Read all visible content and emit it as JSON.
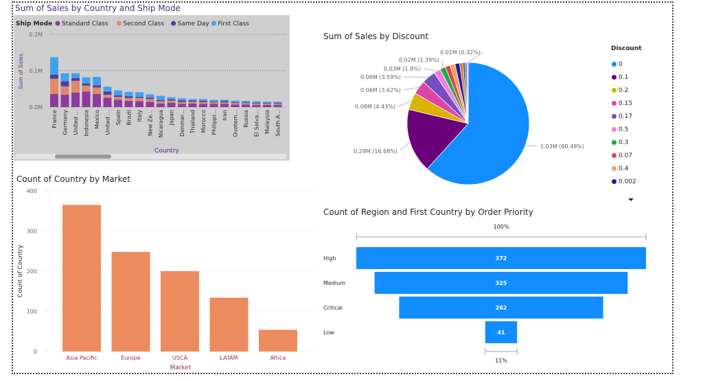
{
  "colors": {
    "standard_class": "#8d3a9c",
    "second_class": "#e2896a",
    "same_day": "#4a3fa5",
    "first_class": "#42a0f0",
    "market_bar": "#ec8b5e",
    "funnel": "#118dff"
  },
  "chart_data": [
    {
      "type": "bar",
      "stacked": true,
      "title": "Sum of Sales by Country and Ship Mode",
      "xlabel": "Country",
      "ylabel": "Sum of Sales",
      "legend_title": "Ship Mode",
      "legend_position": "top-left",
      "yticks": [
        "0.0M",
        "0.1M",
        "0.2M"
      ],
      "ylim": [
        0,
        0.2
      ],
      "categories": [
        "France",
        "Germany",
        "United ...",
        "Indonesia",
        "Mexico",
        "United ...",
        "Spain",
        "Brazil",
        "Italy",
        "New Ze...",
        "Nicaragua",
        "Japan",
        "Denmar...",
        "Thailand",
        "Morocco",
        "Philippi...",
        "Iran",
        "Guatem...",
        "Russia",
        "El Salva...",
        "Malaysia",
        "South A..."
      ],
      "series": [
        {
          "name": "Standard Class",
          "values": [
            0.036,
            0.034,
            0.04,
            0.043,
            0.036,
            0.026,
            0.02,
            0.017,
            0.016,
            0.014,
            0.01,
            0.012,
            0.009,
            0.01,
            0.009,
            0.009,
            0.009,
            0.007,
            0.007,
            0.006,
            0.006,
            0.006
          ]
        },
        {
          "name": "Second Class",
          "values": [
            0.042,
            0.023,
            0.032,
            0.016,
            0.018,
            0.008,
            0.008,
            0.008,
            0.009,
            0.008,
            0.006,
            0.006,
            0.005,
            0.005,
            0.005,
            0.004,
            0.004,
            0.004,
            0.004,
            0.003,
            0.003,
            0.003
          ]
        },
        {
          "name": "Same Day",
          "values": [
            0.011,
            0.014,
            0.008,
            0.006,
            0.006,
            0.009,
            0.004,
            0.005,
            0.003,
            0.004,
            0.003,
            0.003,
            0.004,
            0.003,
            0.003,
            0.002,
            0.003,
            0.002,
            0.002,
            0.002,
            0.002,
            0.002
          ]
        },
        {
          "name": "First Class",
          "values": [
            0.048,
            0.022,
            0.013,
            0.017,
            0.023,
            0.013,
            0.014,
            0.012,
            0.013,
            0.009,
            0.012,
            0.006,
            0.006,
            0.004,
            0.005,
            0.005,
            0.004,
            0.005,
            0.004,
            0.005,
            0.004,
            0.004
          ]
        }
      ]
    },
    {
      "type": "pie",
      "title": "Sum of Sales by Discount",
      "legend_title": "Discount",
      "legend_position": "right",
      "slices": [
        {
          "label": "0",
          "value": 1.03,
          "percent": 60.48,
          "data_label": "1.03M (60.48%)",
          "color": "#118dff"
        },
        {
          "label": "0.1",
          "value": 0.29,
          "percent": 16.68,
          "data_label": "0.29M (16.68%)",
          "color": "#6b007b"
        },
        {
          "label": "0.2",
          "value": 0.08,
          "percent": 4.43,
          "data_label": "0.08M (4.43%)",
          "color": "#d9b300"
        },
        {
          "label": "0.15",
          "value": 0.06,
          "percent": 3.62,
          "data_label": "0.06M (3.62%)",
          "color": "#e044a7"
        },
        {
          "label": "0.17",
          "value": 0.06,
          "percent": 3.59,
          "data_label": "0.06M (3.59%)",
          "color": "#744ec2"
        },
        {
          "label": "0.5",
          "value": 0.03,
          "percent": 1.8,
          "data_label": "0.03M (1.8%)",
          "color": "#f17de1"
        },
        {
          "label": "0.3",
          "value": 0.02,
          "percent": 1.39,
          "data_label": "0.02M (1.39%)",
          "color": "#1aab40"
        },
        {
          "label": "0.07",
          "value": 0.02,
          "percent": 1.3,
          "data_label": "",
          "color": "#d64550"
        },
        {
          "label": "0.4",
          "value": 0.02,
          "percent": 1.3,
          "data_label": "",
          "color": "#fd9b5e"
        },
        {
          "label": "0.002",
          "value": 0.02,
          "percent": 1.2,
          "data_label": "",
          "color": "#12239e"
        },
        {
          "label": "",
          "value": 0.01,
          "percent": 0.8,
          "data_label": "",
          "color": "#e66c37"
        },
        {
          "label": "",
          "value": 0.01,
          "percent": 0.6,
          "data_label": "",
          "color": "#197278"
        },
        {
          "label": "",
          "value": 0.01,
          "percent": 0.5,
          "data_label": "",
          "color": "#b845a7"
        },
        {
          "label": "",
          "value": 0.01,
          "percent": 0.32,
          "data_label": "0.01M (0.32%)",
          "color": "#a0d1ff"
        }
      ],
      "legend_items": [
        "0",
        "0.1",
        "0.2",
        "0.15",
        "0.17",
        "0.5",
        "0.3",
        "0.07",
        "0.4",
        "0.002"
      ]
    },
    {
      "type": "bar",
      "title": "Count of Country by Market",
      "xlabel": "Market",
      "ylabel": "Count of Country",
      "ylim": [
        0,
        400
      ],
      "yticks": [
        "0",
        "100",
        "200",
        "300",
        "400"
      ],
      "categories": [
        "Asia Pacific",
        "Europe",
        "USCA",
        "LATAM",
        "Africa"
      ],
      "values": [
        365,
        248,
        200,
        134,
        54
      ]
    },
    {
      "type": "funnel",
      "title": "Count of Region and First Country by Order Priority",
      "categories": [
        "High",
        "Medium",
        "Critical",
        "Low"
      ],
      "values": [
        372,
        325,
        262,
        41
      ],
      "top_percent_label": "100%",
      "bottom_percent_label": "11%"
    }
  ]
}
